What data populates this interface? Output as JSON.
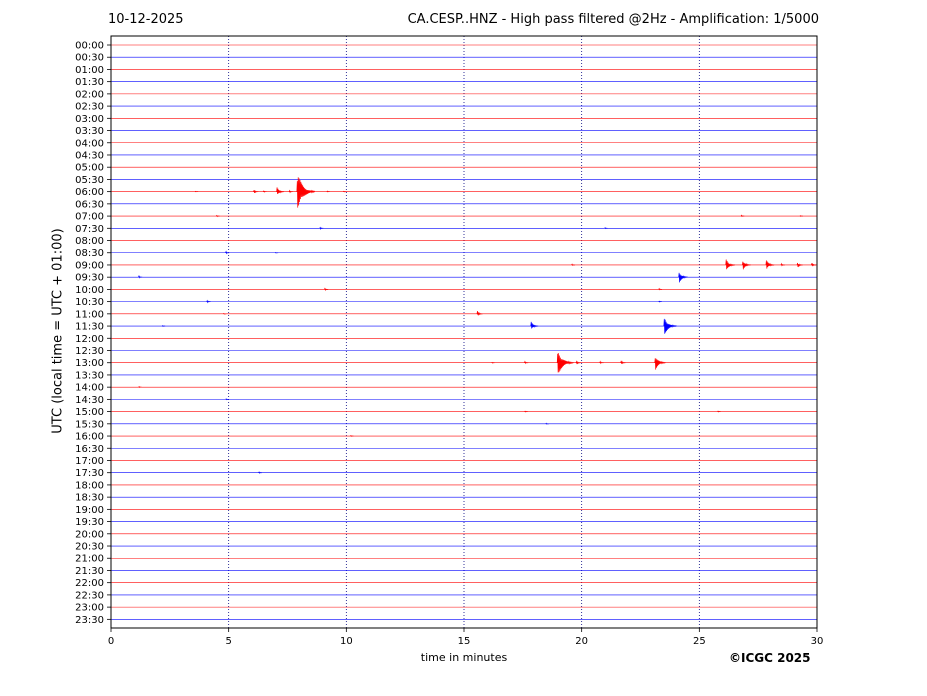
{
  "header": {
    "date": "10-12-2025",
    "title": "CA.CESP..HNZ - High pass filtered @2Hz - Amplification: 1/5000"
  },
  "footer": {
    "copyright": "©ICGC 2025"
  },
  "chart_data": {
    "type": "line",
    "title": "CA.CESP..HNZ - High pass filtered @2Hz - Amplification: 1/5000",
    "xlabel": "time in minutes",
    "ylabel": "UTC (local time = UTC + 01:00)",
    "xlim": [
      0,
      30
    ],
    "xticks": [
      0,
      5,
      10,
      15,
      20,
      25,
      30
    ],
    "vertical_grid": [
      5,
      10,
      15,
      20,
      25
    ],
    "grid": true,
    "trace_colors": [
      "#ff0000",
      "#0000ff"
    ],
    "rows": [
      "00:00",
      "00:30",
      "01:00",
      "01:30",
      "02:00",
      "02:30",
      "03:00",
      "03:30",
      "04:00",
      "04:30",
      "05:00",
      "05:30",
      "06:00",
      "06:30",
      "07:00",
      "07:30",
      "08:00",
      "08:30",
      "09:00",
      "09:30",
      "10:00",
      "10:30",
      "11:00",
      "11:30",
      "12:00",
      "12:30",
      "13:00",
      "13:30",
      "14:00",
      "14:30",
      "15:00",
      "15:30",
      "16:00",
      "16:30",
      "17:00",
      "17:30",
      "18:00",
      "18:30",
      "19:00",
      "19:30",
      "20:00",
      "20:30",
      "21:00",
      "21:30",
      "22:00",
      "22:30",
      "23:00",
      "23:30"
    ],
    "events": [
      {
        "row": "06:00",
        "minute": 3.6,
        "amplitude": 0.6
      },
      {
        "row": "06:00",
        "minute": 6.1,
        "amplitude": 3
      },
      {
        "row": "06:00",
        "minute": 6.5,
        "amplitude": 1.5
      },
      {
        "row": "06:00",
        "minute": 7.1,
        "amplitude": 6
      },
      {
        "row": "06:00",
        "minute": 7.6,
        "amplitude": 2
      },
      {
        "row": "06:00",
        "minute": 8.05,
        "amplitude": 24
      },
      {
        "row": "06:00",
        "minute": 9.2,
        "amplitude": 1
      },
      {
        "row": "06:00",
        "minute": 9.9,
        "amplitude": 0.8
      },
      {
        "row": "07:00",
        "minute": 4.5,
        "amplitude": 1.5
      },
      {
        "row": "07:00",
        "minute": 26.8,
        "amplitude": 1.5
      },
      {
        "row": "07:00",
        "minute": 29.3,
        "amplitude": 0.8
      },
      {
        "row": "07:30",
        "minute": 8.9,
        "amplitude": 2
      },
      {
        "row": "07:30",
        "minute": 21.0,
        "amplitude": 1
      },
      {
        "row": "08:30",
        "minute": 4.9,
        "amplitude": 2
      },
      {
        "row": "08:30",
        "minute": 7.0,
        "amplitude": 0.8
      },
      {
        "row": "09:00",
        "minute": 19.6,
        "amplitude": 1.5
      },
      {
        "row": "09:00",
        "minute": 26.2,
        "amplitude": 8
      },
      {
        "row": "09:00",
        "minute": 26.9,
        "amplitude": 7
      },
      {
        "row": "09:00",
        "minute": 27.9,
        "amplitude": 7
      },
      {
        "row": "09:00",
        "minute": 28.5,
        "amplitude": 2
      },
      {
        "row": "09:00",
        "minute": 29.2,
        "amplitude": 4
      },
      {
        "row": "09:00",
        "minute": 29.8,
        "amplitude": 3
      },
      {
        "row": "09:30",
        "minute": 1.2,
        "amplitude": 2
      },
      {
        "row": "09:30",
        "minute": 24.2,
        "amplitude": 8
      },
      {
        "row": "10:00",
        "minute": 9.1,
        "amplitude": 2
      },
      {
        "row": "10:00",
        "minute": 23.3,
        "amplitude": 1.5
      },
      {
        "row": "10:30",
        "minute": 4.1,
        "amplitude": 2
      },
      {
        "row": "10:30",
        "minute": 23.3,
        "amplitude": 1
      },
      {
        "row": "11:00",
        "minute": 15.6,
        "amplitude": 4
      },
      {
        "row": "11:00",
        "minute": 4.8,
        "amplitude": 0.8
      },
      {
        "row": "11:30",
        "minute": 2.2,
        "amplitude": 1
      },
      {
        "row": "11:30",
        "minute": 17.9,
        "amplitude": 6
      },
      {
        "row": "11:30",
        "minute": 23.6,
        "amplitude": 12
      },
      {
        "row": "13:00",
        "minute": 16.2,
        "amplitude": 1
      },
      {
        "row": "13:00",
        "minute": 17.6,
        "amplitude": 2
      },
      {
        "row": "13:00",
        "minute": 19.1,
        "amplitude": 16
      },
      {
        "row": "13:00",
        "minute": 19.8,
        "amplitude": 3
      },
      {
        "row": "13:00",
        "minute": 20.8,
        "amplitude": 2
      },
      {
        "row": "13:00",
        "minute": 21.7,
        "amplitude": 3
      },
      {
        "row": "13:00",
        "minute": 23.2,
        "amplitude": 10
      },
      {
        "row": "14:00",
        "minute": 1.2,
        "amplitude": 1
      },
      {
        "row": "14:30",
        "minute": 4.9,
        "amplitude": 1
      },
      {
        "row": "15:00",
        "minute": 17.6,
        "amplitude": 1
      },
      {
        "row": "15:00",
        "minute": 25.8,
        "amplitude": 1
      },
      {
        "row": "15:30",
        "minute": 18.5,
        "amplitude": 1
      },
      {
        "row": "16:00",
        "minute": 10.2,
        "amplitude": 1
      },
      {
        "row": "17:30",
        "minute": 6.3,
        "amplitude": 1.5
      }
    ]
  }
}
